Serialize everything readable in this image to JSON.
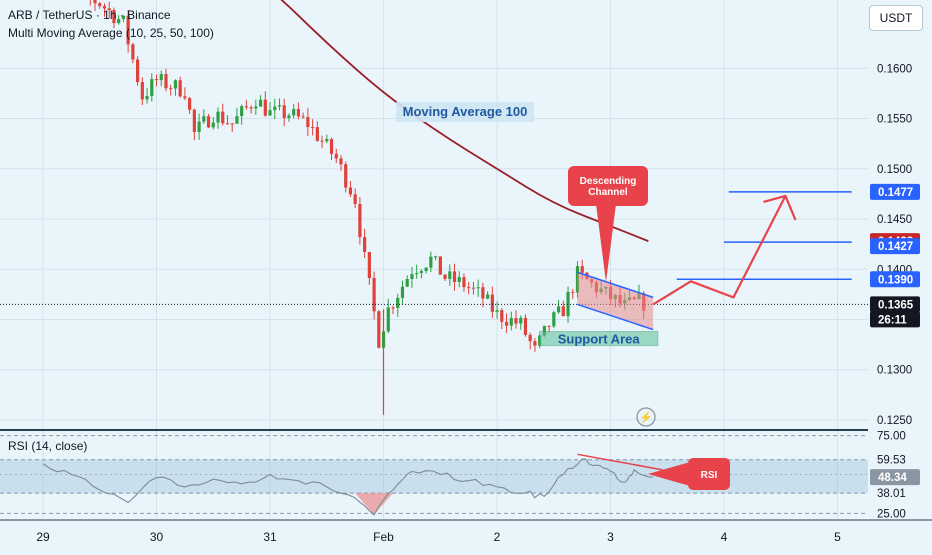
{
  "header": {
    "symbol": "ARB / TetherUS · 1h · Binance",
    "indicator": "Multi Moving Average (10, 25, 50, 100)",
    "currency": "USDT"
  },
  "colors": {
    "up": "#2ea043",
    "down": "#e0413a",
    "ma100": "#9b1e2a",
    "blue_line": "#2962ff",
    "annotation": "#e8434a",
    "support": "#5cbf9a",
    "channel": "#e98b8b",
    "rsi_line": "#7e8a96",
    "rsi_band": "#8fb7d6"
  },
  "price_axis": {
    "ticks": [
      0.16,
      0.155,
      0.15,
      0.145,
      0.14,
      0.135,
      0.13,
      0.125
    ],
    "tick_labels": [
      "0.1600",
      "0.1550",
      "0.1500",
      "0.1450",
      "0.1400",
      "0.1350",
      "0.1300",
      "0.1250"
    ],
    "ylim": [
      0.1242,
      0.1668
    ]
  },
  "price_labels": [
    {
      "text": "0.1477",
      "style": "blue"
    },
    {
      "text": "0.1428",
      "style": "red"
    },
    {
      "text": "0.1427",
      "style": "blue"
    },
    {
      "text": "0.1390",
      "style": "blue"
    },
    {
      "text": "0.1365",
      "style": "black"
    },
    {
      "text": "26:11",
      "style": "black"
    }
  ],
  "time_axis": {
    "labels": [
      "29",
      "30",
      "31",
      "Feb",
      "2",
      "3",
      "4",
      "5"
    ]
  },
  "annotations": {
    "ma_label": "Moving Average 100",
    "channel_label": [
      "Descending",
      "Channel"
    ],
    "support_label": "Support Area",
    "rsi_callout": "RSI"
  },
  "levels": [
    {
      "price": 0.1477,
      "from": "2024-02-04 01:00",
      "to": "2024-02-05 03:00"
    },
    {
      "price": 0.1427,
      "from": "2024-02-04 00:00",
      "to": "2024-02-05 03:00"
    },
    {
      "price": 0.139,
      "from": "2024-02-03 14:00",
      "to": "2024-02-05 03:00"
    }
  ],
  "current_price": 0.1365,
  "projection": [
    {
      "time": "2024-02-03 09:00",
      "price": 0.1365
    },
    {
      "time": "2024-02-03 17:00",
      "price": 0.1388
    },
    {
      "time": "2024-02-04 02:00",
      "price": 0.1372
    },
    {
      "time": "2024-02-04 13:00",
      "price": 0.1473
    },
    {
      "time": "2024-02-04 15:00",
      "price": 0.145
    }
  ],
  "rsi": {
    "title": "RSI (14, close)",
    "levels": [
      75.0,
      59.53,
      38.01,
      25.0
    ],
    "level_labels": [
      "75.00",
      "59.53",
      "38.01",
      "25.00"
    ],
    "current": 48.34,
    "current_label": "48.34",
    "ylim": [
      22,
      78
    ]
  },
  "chart_data": {
    "type": "candlestick",
    "timeframe": "1h",
    "x_axis_labels": [
      "29",
      "30",
      "31",
      "Feb",
      "2",
      "3",
      "4",
      "5"
    ],
    "ylim": [
      0.1242,
      0.1668
    ],
    "close_path": [
      {
        "time": "2024-01-29 00:00",
        "close": 0.169
      },
      {
        "time": "2024-01-29 12:00",
        "close": 0.1665
      },
      {
        "time": "2024-01-29 17:00",
        "close": 0.1645
      },
      {
        "time": "2024-01-29 21:00",
        "close": 0.1572
      },
      {
        "time": "2024-01-30 00:00",
        "close": 0.1588
      },
      {
        "time": "2024-01-30 06:00",
        "close": 0.1578
      },
      {
        "time": "2024-01-30 08:00",
        "close": 0.1535
      },
      {
        "time": "2024-01-30 12:00",
        "close": 0.1555
      },
      {
        "time": "2024-01-30 16:00",
        "close": 0.1545
      },
      {
        "time": "2024-01-30 21:00",
        "close": 0.157
      },
      {
        "time": "2024-01-31 00:00",
        "close": 0.1555
      },
      {
        "time": "2024-01-31 04:00",
        "close": 0.1555
      },
      {
        "time": "2024-01-31 08:00",
        "close": 0.1545
      },
      {
        "time": "2024-01-31 14:00",
        "close": 0.151
      },
      {
        "time": "2024-01-31 18:00",
        "close": 0.147
      },
      {
        "time": "2024-01-31 20:00",
        "close": 0.141
      },
      {
        "time": "2024-01-31 23:00",
        "close": 0.133
      },
      {
        "time": "2024-02-01 01:00",
        "close": 0.136
      },
      {
        "time": "2024-02-01 06:00",
        "close": 0.14
      },
      {
        "time": "2024-02-01 10:00",
        "close": 0.141
      },
      {
        "time": "2024-02-01 13:00",
        "close": 0.1392
      },
      {
        "time": "2024-02-01 17:00",
        "close": 0.1385
      },
      {
        "time": "2024-02-01 21:00",
        "close": 0.1372
      },
      {
        "time": "2024-02-02 00:00",
        "close": 0.1355
      },
      {
        "time": "2024-02-02 05:00",
        "close": 0.1345
      },
      {
        "time": "2024-02-02 08:00",
        "close": 0.1318
      },
      {
        "time": "2024-02-02 11:00",
        "close": 0.1345
      },
      {
        "time": "2024-02-02 14:00",
        "close": 0.136
      },
      {
        "time": "2024-02-02 17:00",
        "close": 0.1395
      },
      {
        "time": "2024-02-02 20:00",
        "close": 0.1385
      },
      {
        "time": "2024-02-03 00:00",
        "close": 0.1372
      },
      {
        "time": "2024-02-03 03:00",
        "close": 0.1363
      },
      {
        "time": "2024-02-03 06:00",
        "close": 0.1368
      },
      {
        "time": "2024-02-03 08:00",
        "close": 0.1365
      }
    ],
    "moving_average_100": [
      {
        "time": "2024-01-30 00:00",
        "value": 0.1768
      },
      {
        "time": "2024-01-30 12:00",
        "value": 0.172
      },
      {
        "time": "2024-01-31 00:00",
        "value": 0.168
      },
      {
        "time": "2024-01-31 12:00",
        "value": 0.1625
      },
      {
        "time": "2024-02-01 00:00",
        "value": 0.1575
      },
      {
        "time": "2024-02-01 12:00",
        "value": 0.1535
      },
      {
        "time": "2024-02-02 00:00",
        "value": 0.15
      },
      {
        "time": "2024-02-02 12:00",
        "value": 0.1465
      },
      {
        "time": "2024-02-03 00:00",
        "value": 0.1443
      },
      {
        "time": "2024-02-03 08:00",
        "value": 0.1428
      }
    ],
    "descending_channel": {
      "upper": [
        {
          "time": "2024-02-02 17:00",
          "price": 0.1397
        },
        {
          "time": "2024-02-03 09:00",
          "price": 0.1372
        }
      ],
      "lower": [
        {
          "time": "2024-02-02 17:00",
          "price": 0.1365
        },
        {
          "time": "2024-02-03 09:00",
          "price": 0.134
        }
      ]
    },
    "support_area": {
      "top": 0.1338,
      "bottom": 0.1324,
      "from": "2024-02-02 09:00",
      "to": "2024-02-03 10:00"
    },
    "rsi_series": [
      {
        "time": "2024-01-29 00:00",
        "value": 57
      },
      {
        "time": "2024-01-29 06:00",
        "value": 50
      },
      {
        "time": "2024-01-29 12:00",
        "value": 40
      },
      {
        "time": "2024-01-29 18:00",
        "value": 32
      },
      {
        "time": "2024-01-30 00:00",
        "value": 48
      },
      {
        "time": "2024-01-30 06:00",
        "value": 42
      },
      {
        "time": "2024-01-30 12:00",
        "value": 47
      },
      {
        "time": "2024-01-30 18:00",
        "value": 44
      },
      {
        "time": "2024-01-31 00:00",
        "value": 50
      },
      {
        "time": "2024-01-31 06:00",
        "value": 46
      },
      {
        "time": "2024-01-31 12:00",
        "value": 42
      },
      {
        "time": "2024-01-31 18:00",
        "value": 35
      },
      {
        "time": "2024-01-31 22:00",
        "value": 24
      },
      {
        "time": "2024-02-01 02:00",
        "value": 40
      },
      {
        "time": "2024-02-01 06:00",
        "value": 52
      },
      {
        "time": "2024-02-01 12:00",
        "value": 50
      },
      {
        "time": "2024-02-01 18:00",
        "value": 46
      },
      {
        "time": "2024-02-02 00:00",
        "value": 42
      },
      {
        "time": "2024-02-02 06:00",
        "value": 38
      },
      {
        "time": "2024-02-02 10:00",
        "value": 36
      },
      {
        "time": "2024-02-02 14:00",
        "value": 50
      },
      {
        "time": "2024-02-02 18:00",
        "value": 60
      },
      {
        "time": "2024-02-02 21:00",
        "value": 56
      },
      {
        "time": "2024-02-03 00:00",
        "value": 52
      },
      {
        "time": "2024-02-03 03:00",
        "value": 45
      },
      {
        "time": "2024-02-03 05:00",
        "value": 53
      },
      {
        "time": "2024-02-03 09:00",
        "value": 48.34
      }
    ]
  }
}
